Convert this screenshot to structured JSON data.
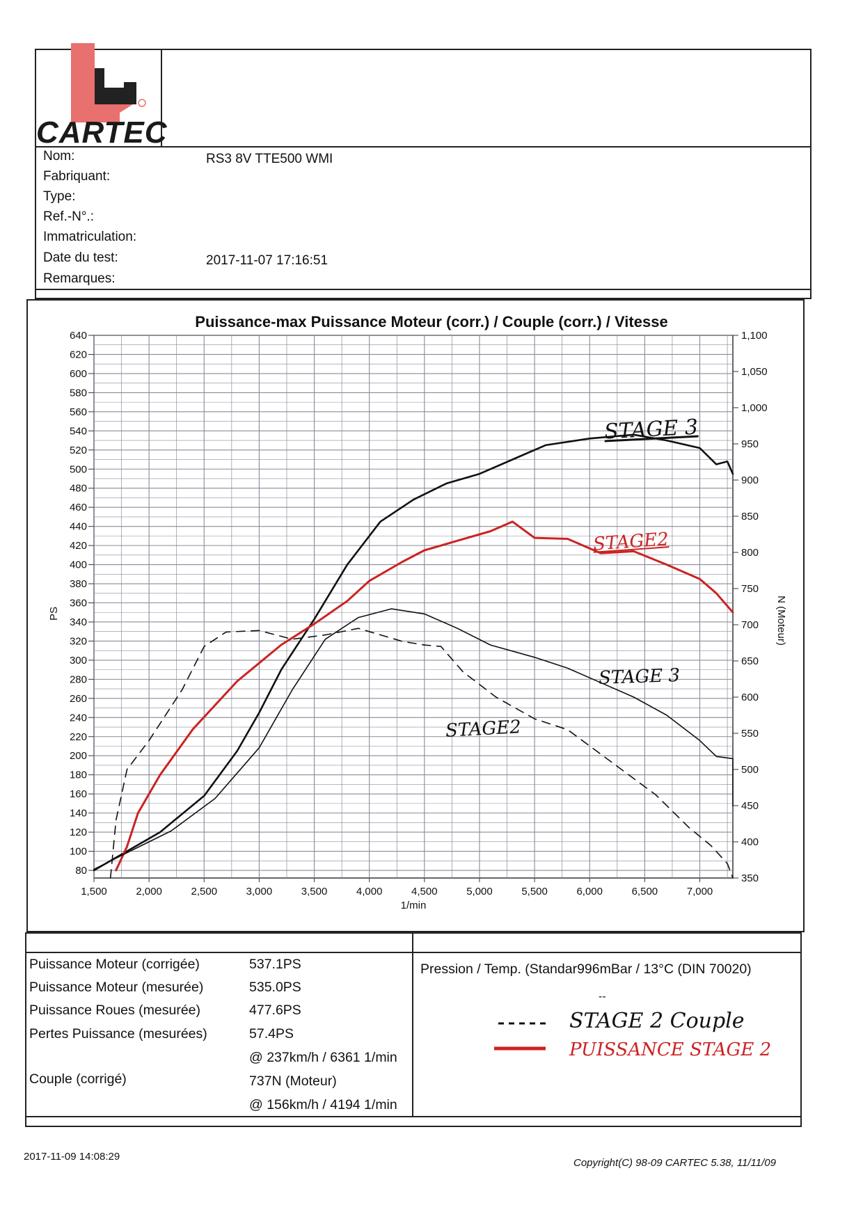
{
  "brand": {
    "name": "CARTEC",
    "registered": "®",
    "logo_color": "#e8706e"
  },
  "info": {
    "labels": [
      "Nom:",
      "Fabriquant:",
      "Type:",
      "Ref.-N°.:",
      "Immatriculation:",
      "Date du test:",
      "Remarques:"
    ],
    "nom_value": "RS3 8V TTE500 WMI",
    "date_value": "2017-11-07 17:16:51"
  },
  "chart_data": {
    "type": "line",
    "title": "Puissance-max Puissance Moteur (corr.) / Couple (corr.) / Vitesse",
    "xlabel": "1/min",
    "ylabel": "PS",
    "y2label": "N (Moteur)",
    "xlim": [
      1500,
      7300
    ],
    "ylim": [
      72,
      640
    ],
    "y2lim": [
      350,
      1100
    ],
    "x_ticks": [
      "1,500",
      "2,000",
      "2,500",
      "3,000",
      "3,500",
      "4,000",
      "4,500",
      "5,000",
      "5,500",
      "6,000",
      "6,500",
      "7,000"
    ],
    "y_ticks": [
      "640",
      "620",
      "600",
      "580",
      "560",
      "540",
      "520",
      "500",
      "480",
      "460",
      "440",
      "420",
      "400",
      "380",
      "360",
      "340",
      "320",
      "300",
      "280",
      "260",
      "240",
      "220",
      "200",
      "180",
      "160",
      "140",
      "120",
      "100",
      "80"
    ],
    "y2_ticks": [
      "1,100",
      "1,050",
      "1,000",
      "950",
      "900",
      "850",
      "800",
      "750",
      "700",
      "650",
      "600",
      "550",
      "500",
      "450",
      "400",
      "350"
    ],
    "series": [
      {
        "name": "Puissance Stage 3",
        "axis": "left",
        "style": "solid",
        "color": "#111111",
        "points": [
          [
            1500,
            80
          ],
          [
            1800,
            100
          ],
          [
            2100,
            120
          ],
          [
            2500,
            158
          ],
          [
            2800,
            205
          ],
          [
            3000,
            245
          ],
          [
            3200,
            290
          ],
          [
            3500,
            343
          ],
          [
            3800,
            400
          ],
          [
            4100,
            445
          ],
          [
            4400,
            468
          ],
          [
            4700,
            485
          ],
          [
            5000,
            495
          ],
          [
            5300,
            510
          ],
          [
            5600,
            525
          ],
          [
            6000,
            532
          ],
          [
            6400,
            536
          ],
          [
            6700,
            530
          ],
          [
            7000,
            522
          ],
          [
            7150,
            505
          ],
          [
            7250,
            508
          ],
          [
            7300,
            495
          ]
        ]
      },
      {
        "name": "Puissance Stage 2",
        "axis": "left",
        "style": "solid",
        "color": "#cc2222",
        "points": [
          [
            1700,
            80
          ],
          [
            1800,
            105
          ],
          [
            1900,
            140
          ],
          [
            2100,
            180
          ],
          [
            2400,
            228
          ],
          [
            2800,
            278
          ],
          [
            3200,
            316
          ],
          [
            3500,
            338
          ],
          [
            3800,
            362
          ],
          [
            4000,
            383
          ],
          [
            4300,
            403
          ],
          [
            4500,
            415
          ],
          [
            4800,
            425
          ],
          [
            5100,
            435
          ],
          [
            5300,
            445
          ],
          [
            5500,
            428
          ],
          [
            5800,
            427
          ],
          [
            6100,
            412
          ],
          [
            6400,
            414
          ],
          [
            6700,
            400
          ],
          [
            7000,
            385
          ],
          [
            7150,
            370
          ],
          [
            7300,
            350
          ]
        ]
      },
      {
        "name": "Couple Stage 3",
        "axis": "right",
        "style": "solid",
        "color": "#111111",
        "points": [
          [
            1500,
            362
          ],
          [
            1800,
            385
          ],
          [
            2200,
            415
          ],
          [
            2600,
            460
          ],
          [
            3000,
            530
          ],
          [
            3300,
            610
          ],
          [
            3600,
            680
          ],
          [
            3900,
            710
          ],
          [
            4200,
            722
          ],
          [
            4500,
            715
          ],
          [
            4800,
            695
          ],
          [
            5100,
            672
          ],
          [
            5500,
            655
          ],
          [
            5800,
            640
          ],
          [
            6100,
            620
          ],
          [
            6400,
            600
          ],
          [
            6700,
            575
          ],
          [
            7000,
            540
          ],
          [
            7150,
            518
          ],
          [
            7300,
            515
          ],
          [
            7300,
            450
          ]
        ]
      },
      {
        "name": "Couple Stage 2",
        "axis": "right",
        "style": "dashed",
        "color": "#111111",
        "points": [
          [
            1650,
            350
          ],
          [
            1700,
            430
          ],
          [
            1800,
            500
          ],
          [
            2000,
            540
          ],
          [
            2300,
            610
          ],
          [
            2500,
            670
          ],
          [
            2700,
            690
          ],
          [
            3000,
            692
          ],
          [
            3300,
            680
          ],
          [
            3600,
            686
          ],
          [
            3900,
            695
          ],
          [
            4300,
            677
          ],
          [
            4500,
            672
          ],
          [
            4650,
            670
          ],
          [
            4850,
            635
          ],
          [
            5150,
            600
          ],
          [
            5500,
            570
          ],
          [
            5800,
            555
          ],
          [
            6200,
            510
          ],
          [
            6600,
            465
          ],
          [
            6900,
            420
          ],
          [
            7100,
            395
          ],
          [
            7250,
            370
          ],
          [
            7300,
            350
          ]
        ]
      }
    ],
    "annotations": [
      "STAGE 3",
      "STAGE2",
      "STAGE 3",
      "STAGE2"
    ]
  },
  "results": {
    "rows": [
      {
        "label": "Puissance Moteur (corrigée)",
        "value": "537.1PS"
      },
      {
        "label": "Puissance Moteur (mesurée)",
        "value": "535.0PS"
      },
      {
        "label": "Puissance Roues (mesurée)",
        "value": "477.6PS"
      },
      {
        "label": "Pertes Puissance (mesurées)",
        "value": "57.4PS"
      },
      {
        "label": "",
        "value": "@ 237km/h / 6361 1/min"
      },
      {
        "label": "Couple (corrigé)",
        "value": "737N (Moteur)"
      },
      {
        "label": "",
        "value": "@ 156km/h / 4194 1/min"
      }
    ],
    "pressure": "Pression / Temp. (Standar996mBar / 13°C   (DIN 70020)",
    "pressure_sub": "--"
  },
  "legend_handwritten": {
    "dashed_line": "STAGE 2 Couple",
    "red_line": "PUISSANCE STAGE 2"
  },
  "footer": {
    "printed": "2017-11-09 14:08:29",
    "copyright": "Copyright(C) 98-09 CARTEC 5.38, 11/11/09"
  }
}
